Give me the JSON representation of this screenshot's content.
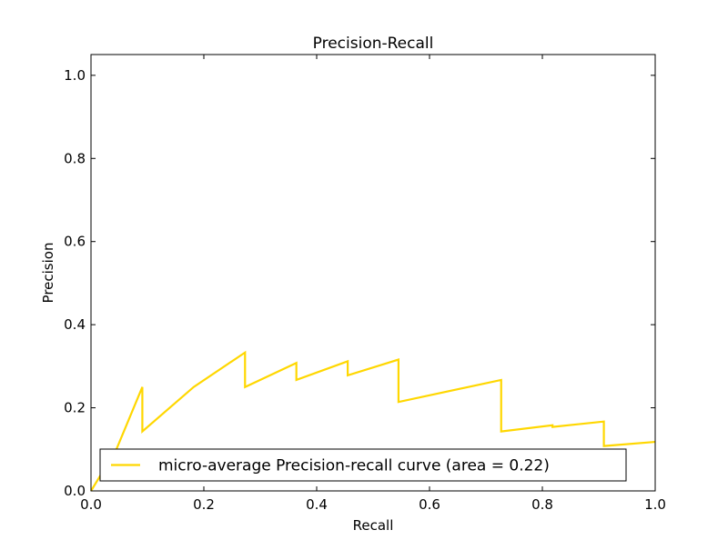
{
  "chart_data": {
    "type": "line",
    "title": "Precision-Recall",
    "xlabel": "Recall",
    "ylabel": "Precision",
    "xlim": [
      0.0,
      1.0
    ],
    "ylim": [
      0.0,
      1.05
    ],
    "xticks": [
      "0.0",
      "0.2",
      "0.4",
      "0.6",
      "0.8",
      "1.0"
    ],
    "yticks": [
      "0.0",
      "0.2",
      "0.4",
      "0.6",
      "0.8",
      "1.0"
    ],
    "grid": false,
    "legend_position": "lower-right",
    "series": [
      {
        "name": "micro-average Precision-recall curve (area = 0.22)",
        "color": "#FFD700",
        "x": [
          0.0,
          0.045,
          0.091,
          0.091,
          0.182,
          0.273,
          0.273,
          0.364,
          0.364,
          0.455,
          0.455,
          0.545,
          0.545,
          0.727,
          0.727,
          0.818,
          0.818,
          0.909,
          0.909,
          1.0
        ],
        "y": [
          0.0,
          0.1,
          0.25,
          0.143,
          0.25,
          0.333,
          0.25,
          0.308,
          0.267,
          0.312,
          0.278,
          0.316,
          0.214,
          0.267,
          0.143,
          0.158,
          0.154,
          0.167,
          0.108,
          0.118
        ]
      }
    ]
  }
}
